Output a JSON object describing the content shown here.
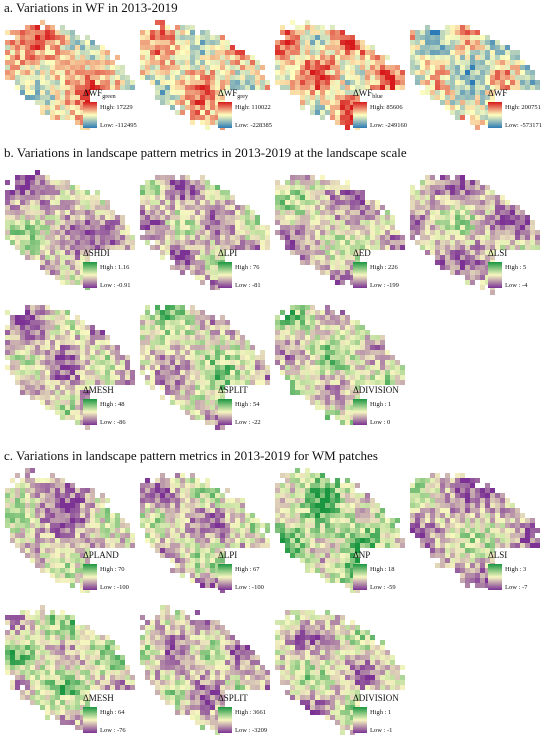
{
  "sections": [
    {
      "title": "a. Variations in WF in 2013-2019",
      "panels": [
        {
          "label": "ΔWF",
          "subscript": "green",
          "high": "High: 17229",
          "low": "Low: -112495"
        },
        {
          "label": "ΔWF",
          "subscript": "grey",
          "high": "High: 110022",
          "low": "Low: -228385"
        },
        {
          "label": "ΔWF",
          "subscript": "blue",
          "high": "High: 85606",
          "low": "Low: -249160"
        },
        {
          "label": "ΔWF",
          "high": "High: 200751",
          "low": "Low: -573171"
        }
      ]
    },
    {
      "title": "b. Variations in landscape pattern metrics in 2013-2019 at the landscape scale",
      "panels": [
        {
          "label": "ΔSHDI",
          "high": "High : 1.16",
          "low": "Low : -0.91"
        },
        {
          "label": "ΔLPI",
          "high": "High : 76",
          "low": "Low : -81"
        },
        {
          "label": "ΔED",
          "high": "High : 226",
          "low": "Low : -199"
        },
        {
          "label": "ΔLSI",
          "high": "High : 5",
          "low": "Low : -4"
        },
        {
          "label": "ΔMESH",
          "high": "High : 48",
          "low": "Low : -86"
        },
        {
          "label": "ΔSPLIT",
          "high": "High : 54",
          "low": "Low : -22"
        },
        {
          "label": "ΔDIVISION",
          "high": "High : 1",
          "low": "Low : 0"
        }
      ]
    },
    {
      "title": "c. Variations in landscape pattern metrics in 2013-2019 for WM patches",
      "panels": [
        {
          "label": "ΔPLAND",
          "high": "High : 70",
          "low": "Low : -100"
        },
        {
          "label": "ΔLPI",
          "high": "High : 67",
          "low": "Low : -100"
        },
        {
          "label": "ΔNP",
          "high": "High : 18",
          "low": "Low : -59"
        },
        {
          "label": "ΔLSI",
          "high": "High : 3",
          "low": "Low : -7"
        },
        {
          "label": "ΔMESH",
          "high": "High : 64",
          "low": "Low : -76"
        },
        {
          "label": "ΔSPLIT",
          "high": "High : 3661",
          "low": "Low : -3209"
        },
        {
          "label": "ΔDIVISION",
          "high": "High : 1",
          "low": "Low : -1"
        }
      ]
    }
  ]
}
